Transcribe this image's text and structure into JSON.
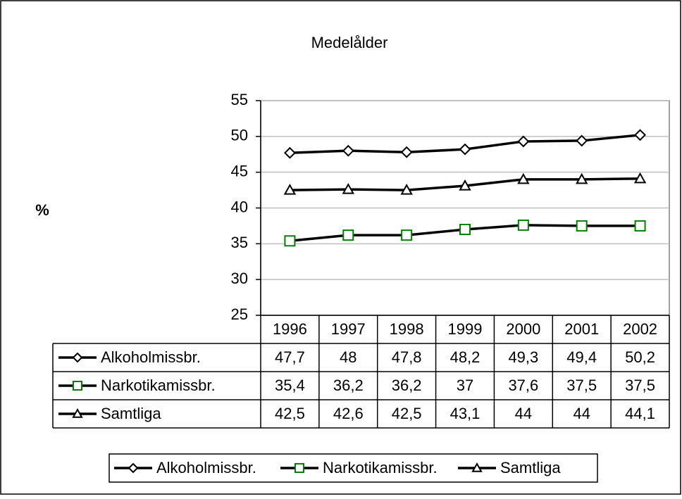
{
  "chart_data": {
    "type": "line",
    "title": "Medelålder",
    "y_label": "%",
    "categories": [
      "1996",
      "1997",
      "1998",
      "1999",
      "2000",
      "2001",
      "2002"
    ],
    "ylim": [
      25,
      55
    ],
    "yticks": [
      25,
      30,
      35,
      40,
      45,
      50,
      55
    ],
    "grid": true,
    "legend": "bottom",
    "data_table": true,
    "series": [
      {
        "name": "Alkoholmissbr.",
        "color": "#000000",
        "marker": "diamond",
        "marker_color": "#000000",
        "values": [
          47.7,
          48,
          47.8,
          48.2,
          49.3,
          49.4,
          50.2
        ],
        "value_labels": [
          "47,7",
          "48",
          "47,8",
          "48,2",
          "49,3",
          "49,4",
          "50,2"
        ]
      },
      {
        "name": "Narkotikamissbr.",
        "color": "#000000",
        "marker": "square",
        "marker_color": "#008000",
        "values": [
          35.4,
          36.2,
          36.2,
          37,
          37.6,
          37.5,
          37.5
        ],
        "value_labels": [
          "35,4",
          "36,2",
          "36,2",
          "37",
          "37,6",
          "37,5",
          "37,5"
        ]
      },
      {
        "name": "Samtliga",
        "color": "#000000",
        "marker": "triangle",
        "marker_color": "#000000",
        "values": [
          42.5,
          42.6,
          42.5,
          43.1,
          44,
          44,
          44.1
        ],
        "value_labels": [
          "42,5",
          "42,6",
          "42,5",
          "43,1",
          "44",
          "44",
          "44,1"
        ]
      }
    ]
  }
}
